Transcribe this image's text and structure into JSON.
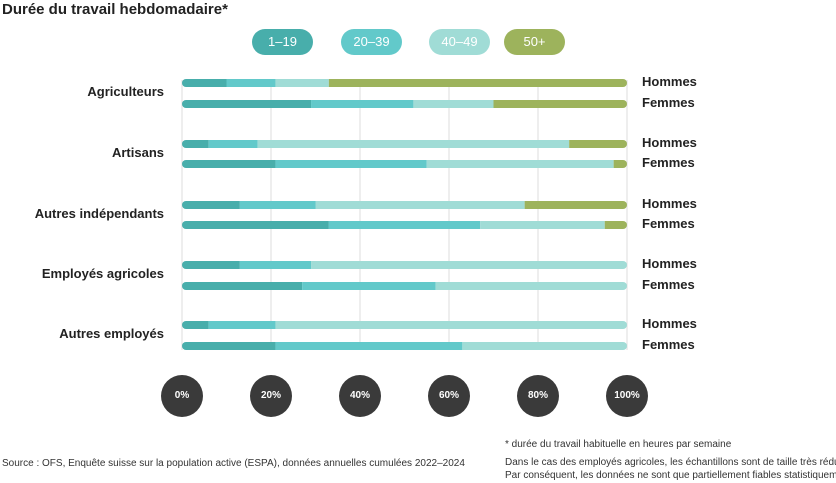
{
  "chart_data": {
    "type": "bar",
    "stacked": true,
    "orientation": "horizontal",
    "title": "Durée du travail hebdomadaire*",
    "legend": [
      {
        "label": "1–19",
        "color": "#48aeab"
      },
      {
        "label": "20–39",
        "color": "#62c9ca"
      },
      {
        "label": "40–49",
        "color": "#a0dcd6"
      },
      {
        "label": "50+",
        "color": "#9db35c"
      }
    ],
    "categories": [
      "Agriculteurs",
      "Artisans",
      "Autres indépendants",
      "Employés agricoles",
      "Autres employés"
    ],
    "sex_labels": [
      "Hommes",
      "Femmes"
    ],
    "rows": [
      {
        "category": "Agriculteurs",
        "sex": "Hommes",
        "values": [
          10,
          11,
          12,
          67
        ]
      },
      {
        "category": "Agriculteurs",
        "sex": "Femmes",
        "values": [
          29,
          23,
          18,
          30
        ]
      },
      {
        "category": "Artisans",
        "sex": "Hommes",
        "values": [
          6,
          11,
          70,
          13
        ]
      },
      {
        "category": "Artisans",
        "sex": "Femmes",
        "values": [
          21,
          34,
          42,
          3
        ]
      },
      {
        "category": "Autres indépendants",
        "sex": "Hommes",
        "values": [
          13,
          17,
          47,
          23
        ]
      },
      {
        "category": "Autres indépendants",
        "sex": "Femmes",
        "values": [
          33,
          34,
          28,
          5
        ]
      },
      {
        "category": "Employés agricoles",
        "sex": "Hommes",
        "values": [
          13,
          16,
          71,
          0
        ]
      },
      {
        "category": "Employés agricoles",
        "sex": "Femmes",
        "values": [
          27,
          30,
          43,
          0
        ]
      },
      {
        "category": "Autres employés",
        "sex": "Hommes",
        "values": [
          6,
          15,
          79,
          0
        ]
      },
      {
        "category": "Autres employés",
        "sex": "Femmes",
        "values": [
          21,
          42,
          37,
          0
        ]
      }
    ],
    "xlim": [
      0,
      100
    ],
    "x_ticks": [
      "0%",
      "20%",
      "40%",
      "60%",
      "80%",
      "100%"
    ],
    "grid": true
  },
  "notes": {
    "footnote": "* durée du travail habituelle en heures par semaine",
    "caveat1": "Dans le cas des employés agricoles, les échantillons sont de taille très réduite.",
    "caveat2": "Par conséquent, les données ne sont que partiellement fiables statistiquement.",
    "source": "Source : OFS, Enquête suisse sur la population active (ESPA), données annuelles cumulées 2022–2024"
  }
}
